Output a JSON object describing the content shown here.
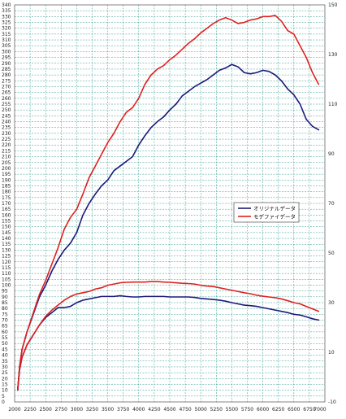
{
  "chart_data": {
    "type": "line",
    "title": "",
    "xlabel": "",
    "ylabel": "",
    "xlim": [
      2000,
      7000
    ],
    "ylim_left": [
      0,
      340
    ],
    "ylim_right": [
      -10,
      150
    ],
    "x_ticks": [
      2000,
      2250,
      2500,
      2750,
      3000,
      3250,
      3500,
      3750,
      4000,
      4250,
      4500,
      4750,
      5000,
      5250,
      5500,
      5750,
      6000,
      6250,
      6500,
      6750,
      7000
    ],
    "y_left_ticks": [
      0,
      5,
      10,
      15,
      20,
      25,
      30,
      35,
      40,
      45,
      50,
      55,
      60,
      65,
      70,
      75,
      80,
      85,
      90,
      95,
      100,
      105,
      110,
      115,
      120,
      125,
      130,
      135,
      140,
      145,
      150,
      155,
      160,
      165,
      170,
      175,
      180,
      185,
      190,
      195,
      200,
      205,
      210,
      215,
      220,
      225,
      230,
      235,
      240,
      245,
      250,
      255,
      260,
      265,
      270,
      275,
      280,
      285,
      290,
      295,
      300,
      305,
      310,
      315,
      320,
      325,
      330,
      335,
      340
    ],
    "y_right_ticks": [
      -10,
      10,
      30,
      50,
      70,
      90,
      110,
      130,
      150
    ],
    "grid": true,
    "legend_position": "right-middle",
    "series": [
      {
        "name": "オリジナルデータ",
        "axis": "left",
        "color": "#1a1a7a",
        "x": [
          2050,
          2080,
          2120,
          2200,
          2300,
          2400,
          2500,
          2600,
          2700,
          2800,
          2900,
          3000,
          3100,
          3200,
          3300,
          3400,
          3500,
          3600,
          3700,
          3800,
          3900,
          4000,
          4100,
          4200,
          4300,
          4400,
          4500,
          4600,
          4700,
          4800,
          4900,
          5000,
          5100,
          5200,
          5300,
          5400,
          5500,
          5600,
          5700,
          5800,
          5900,
          6000,
          6100,
          6200,
          6300,
          6400,
          6500,
          6600,
          6700,
          6800,
          6900
        ],
        "y": [
          10,
          30,
          45,
          60,
          75,
          90,
          100,
          112,
          122,
          130,
          136,
          145,
          160,
          170,
          178,
          185,
          190,
          198,
          202,
          206,
          210,
          220,
          228,
          235,
          240,
          244,
          250,
          255,
          262,
          266,
          270,
          273,
          276,
          280,
          284,
          286,
          289,
          287,
          282,
          281,
          282,
          284,
          283,
          280,
          275,
          268,
          263,
          255,
          242,
          236,
          233
        ]
      },
      {
        "name": "モデファイデータ",
        "axis": "left",
        "color": "#e02020",
        "x": [
          2050,
          2080,
          2120,
          2200,
          2300,
          2400,
          2500,
          2600,
          2700,
          2800,
          2900,
          3000,
          3100,
          3200,
          3300,
          3400,
          3500,
          3600,
          3700,
          3800,
          3900,
          4000,
          4100,
          4200,
          4300,
          4400,
          4500,
          4600,
          4700,
          4800,
          4900,
          5000,
          5100,
          5200,
          5300,
          5400,
          5500,
          5600,
          5700,
          5800,
          5900,
          6000,
          6100,
          6200,
          6300,
          6400,
          6500,
          6600,
          6700,
          6800,
          6900
        ],
        "y": [
          10,
          30,
          45,
          60,
          76,
          92,
          104,
          118,
          132,
          148,
          158,
          165,
          178,
          192,
          202,
          212,
          222,
          230,
          240,
          248,
          252,
          260,
          272,
          280,
          285,
          288,
          293,
          297,
          302,
          307,
          311,
          316,
          320,
          324,
          327,
          329,
          327,
          324,
          325,
          327,
          328,
          330,
          330,
          331,
          326,
          318,
          315,
          305,
          295,
          282,
          272
        ]
      },
      {
        "name": "",
        "axis": "right",
        "color": "#1a1a7a",
        "x": [
          2050,
          2080,
          2120,
          2200,
          2300,
          2400,
          2500,
          2600,
          2700,
          2800,
          2900,
          3000,
          3100,
          3200,
          3300,
          3400,
          3500,
          3600,
          3700,
          3800,
          3900,
          4000,
          4100,
          4200,
          4300,
          4400,
          4500,
          4600,
          4700,
          4800,
          4900,
          5000,
          5100,
          5200,
          5300,
          5400,
          5500,
          5600,
          5700,
          5800,
          5900,
          6000,
          6100,
          6200,
          6300,
          6400,
          6500,
          6600,
          6700,
          6800,
          6900
        ],
        "y": [
          -5,
          3,
          8,
          13,
          17,
          21,
          24,
          26,
          28,
          28,
          28.5,
          30,
          31,
          31.5,
          32,
          32.5,
          32.5,
          32.5,
          32.8,
          32.5,
          32.3,
          32.3,
          32.5,
          32.5,
          32.5,
          32.5,
          32.3,
          32.3,
          32.3,
          32.3,
          32.1,
          31.7,
          31.5,
          31.3,
          31,
          30.6,
          30,
          29.5,
          29,
          28.8,
          28.5,
          28,
          27.5,
          27,
          26.5,
          26,
          25.3,
          25,
          24.3,
          23.5,
          23
        ]
      },
      {
        "name": "",
        "axis": "right",
        "color": "#e02020",
        "x": [
          2050,
          2080,
          2120,
          2200,
          2300,
          2400,
          2500,
          2600,
          2700,
          2800,
          2900,
          3000,
          3100,
          3200,
          3300,
          3400,
          3500,
          3600,
          3700,
          3800,
          3900,
          4000,
          4100,
          4200,
          4300,
          4400,
          4500,
          4600,
          4700,
          4800,
          4900,
          5000,
          5100,
          5200,
          5300,
          5400,
          5500,
          5600,
          5700,
          5800,
          5900,
          6000,
          6100,
          6200,
          6300,
          6400,
          6500,
          6600,
          6700,
          6800,
          6900
        ],
        "y": [
          -5,
          3,
          8,
          13,
          17,
          21,
          24.5,
          27,
          29,
          31,
          32.5,
          33.5,
          34,
          34.5,
          35.5,
          36,
          37,
          37.5,
          38,
          38.2,
          38.3,
          38.3,
          38.3,
          38.5,
          38.5,
          38.3,
          38.2,
          38,
          37.8,
          37.7,
          37.5,
          37,
          36.7,
          36.5,
          36,
          35.5,
          35,
          34.5,
          34,
          33.6,
          33,
          32.6,
          32.3,
          32,
          31.5,
          30.8,
          30,
          29.5,
          28.5,
          27.5,
          26.5
        ]
      }
    ]
  }
}
